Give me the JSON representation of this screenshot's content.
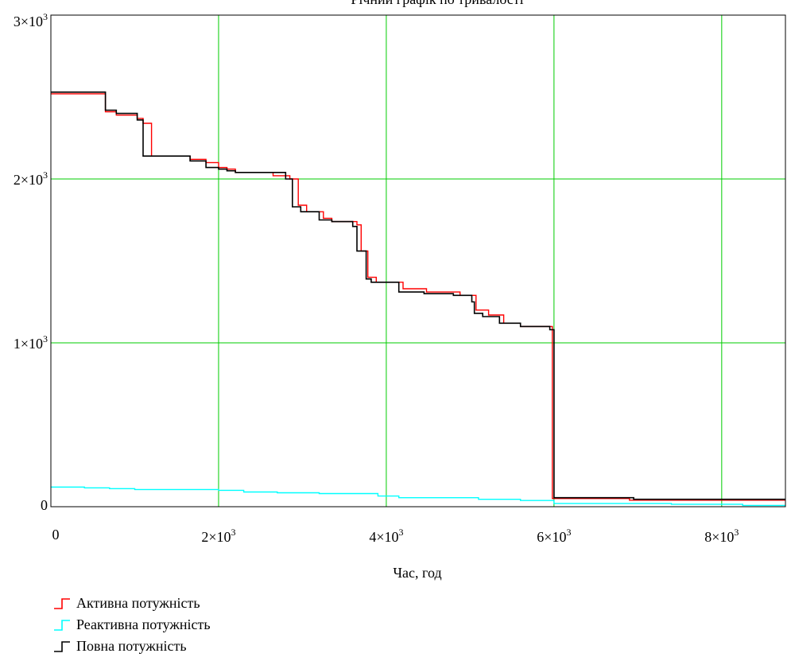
{
  "chart_data": {
    "type": "line",
    "title": "Річний графік по тривалості",
    "xlabel": "Час, год",
    "ylabel": "",
    "xlim": [
      0,
      8760
    ],
    "ylim": [
      0,
      3000
    ],
    "x_ticks": [
      {
        "value": 0,
        "mant": "0",
        "exp": ""
      },
      {
        "value": 2000,
        "mant": "2×10",
        "exp": "3"
      },
      {
        "value": 4000,
        "mant": "4×10",
        "exp": "3"
      },
      {
        "value": 6000,
        "mant": "6×10",
        "exp": "3"
      },
      {
        "value": 8000,
        "mant": "8×10",
        "exp": "3"
      }
    ],
    "y_ticks": [
      {
        "value": 0,
        "mant": "0",
        "exp": ""
      },
      {
        "value": 1000,
        "mant": "1×10",
        "exp": "3"
      },
      {
        "value": 2000,
        "mant": "2×10",
        "exp": "3"
      },
      {
        "value": 3000,
        "mant": "3×10",
        "exp": "3"
      }
    ],
    "grid": true,
    "legend_position": "bottom-left",
    "series": [
      {
        "name": "Активна потужність",
        "color": "#ff0000",
        "step": true,
        "points": [
          [
            0,
            2520
          ],
          [
            650,
            2520
          ],
          [
            650,
            2410
          ],
          [
            780,
            2410
          ],
          [
            780,
            2390
          ],
          [
            1030,
            2390
          ],
          [
            1030,
            2370
          ],
          [
            1100,
            2370
          ],
          [
            1100,
            2340
          ],
          [
            1200,
            2340
          ],
          [
            1200,
            2140
          ],
          [
            1660,
            2140
          ],
          [
            1660,
            2120
          ],
          [
            1850,
            2120
          ],
          [
            1850,
            2100
          ],
          [
            2000,
            2100
          ],
          [
            2000,
            2070
          ],
          [
            2100,
            2070
          ],
          [
            2100,
            2060
          ],
          [
            2200,
            2060
          ],
          [
            2200,
            2040
          ],
          [
            2650,
            2040
          ],
          [
            2650,
            2020
          ],
          [
            2850,
            2020
          ],
          [
            2850,
            2000
          ],
          [
            2950,
            2000
          ],
          [
            2950,
            1840
          ],
          [
            3050,
            1840
          ],
          [
            3050,
            1800
          ],
          [
            3250,
            1800
          ],
          [
            3250,
            1760
          ],
          [
            3350,
            1760
          ],
          [
            3350,
            1740
          ],
          [
            3650,
            1740
          ],
          [
            3650,
            1720
          ],
          [
            3700,
            1720
          ],
          [
            3700,
            1560
          ],
          [
            3780,
            1560
          ],
          [
            3780,
            1400
          ],
          [
            3880,
            1400
          ],
          [
            3880,
            1370
          ],
          [
            4200,
            1370
          ],
          [
            4200,
            1330
          ],
          [
            4480,
            1330
          ],
          [
            4480,
            1310
          ],
          [
            4880,
            1310
          ],
          [
            4880,
            1290
          ],
          [
            5070,
            1290
          ],
          [
            5070,
            1200
          ],
          [
            5220,
            1200
          ],
          [
            5220,
            1170
          ],
          [
            5400,
            1170
          ],
          [
            5400,
            1120
          ],
          [
            5600,
            1120
          ],
          [
            5600,
            1100
          ],
          [
            5980,
            1100
          ],
          [
            5980,
            50
          ],
          [
            6900,
            50
          ],
          [
            6900,
            40
          ],
          [
            8760,
            40
          ]
        ]
      },
      {
        "name": "Реактивна потужність",
        "color": "#00ffff",
        "step": true,
        "points": [
          [
            0,
            120
          ],
          [
            400,
            120
          ],
          [
            400,
            115
          ],
          [
            700,
            115
          ],
          [
            700,
            110
          ],
          [
            1000,
            110
          ],
          [
            1000,
            105
          ],
          [
            2000,
            105
          ],
          [
            2000,
            100
          ],
          [
            2300,
            100
          ],
          [
            2300,
            90
          ],
          [
            2700,
            90
          ],
          [
            2700,
            85
          ],
          [
            3200,
            85
          ],
          [
            3200,
            80
          ],
          [
            3900,
            80
          ],
          [
            3900,
            65
          ],
          [
            4150,
            65
          ],
          [
            4150,
            55
          ],
          [
            5100,
            55
          ],
          [
            5100,
            45
          ],
          [
            5600,
            45
          ],
          [
            5600,
            38
          ],
          [
            6000,
            38
          ],
          [
            6000,
            20
          ],
          [
            7400,
            20
          ],
          [
            7400,
            15
          ],
          [
            8250,
            15
          ],
          [
            8250,
            8
          ],
          [
            8760,
            8
          ]
        ]
      },
      {
        "name": "Повна потужність",
        "color": "#000000",
        "step": true,
        "points": [
          [
            0,
            2530
          ],
          [
            650,
            2530
          ],
          [
            650,
            2420
          ],
          [
            780,
            2420
          ],
          [
            780,
            2400
          ],
          [
            1030,
            2400
          ],
          [
            1030,
            2360
          ],
          [
            1100,
            2360
          ],
          [
            1100,
            2140
          ],
          [
            1660,
            2140
          ],
          [
            1660,
            2110
          ],
          [
            1850,
            2110
          ],
          [
            1850,
            2070
          ],
          [
            2000,
            2070
          ],
          [
            2000,
            2060
          ],
          [
            2100,
            2060
          ],
          [
            2100,
            2050
          ],
          [
            2200,
            2050
          ],
          [
            2200,
            2040
          ],
          [
            2800,
            2040
          ],
          [
            2800,
            2000
          ],
          [
            2880,
            2000
          ],
          [
            2880,
            1830
          ],
          [
            2980,
            1830
          ],
          [
            2980,
            1800
          ],
          [
            3200,
            1800
          ],
          [
            3200,
            1750
          ],
          [
            3350,
            1750
          ],
          [
            3350,
            1740
          ],
          [
            3600,
            1740
          ],
          [
            3600,
            1710
          ],
          [
            3650,
            1710
          ],
          [
            3650,
            1560
          ],
          [
            3760,
            1560
          ],
          [
            3760,
            1390
          ],
          [
            3820,
            1390
          ],
          [
            3820,
            1370
          ],
          [
            4150,
            1370
          ],
          [
            4150,
            1310
          ],
          [
            4450,
            1310
          ],
          [
            4450,
            1300
          ],
          [
            4800,
            1300
          ],
          [
            4800,
            1290
          ],
          [
            5020,
            1290
          ],
          [
            5020,
            1250
          ],
          [
            5050,
            1250
          ],
          [
            5050,
            1180
          ],
          [
            5150,
            1180
          ],
          [
            5150,
            1160
          ],
          [
            5350,
            1160
          ],
          [
            5350,
            1120
          ],
          [
            5600,
            1120
          ],
          [
            5600,
            1100
          ],
          [
            5950,
            1100
          ],
          [
            5950,
            1080
          ],
          [
            6000,
            1080
          ],
          [
            6000,
            55
          ],
          [
            6950,
            55
          ],
          [
            6950,
            45
          ],
          [
            8760,
            45
          ]
        ]
      }
    ]
  }
}
